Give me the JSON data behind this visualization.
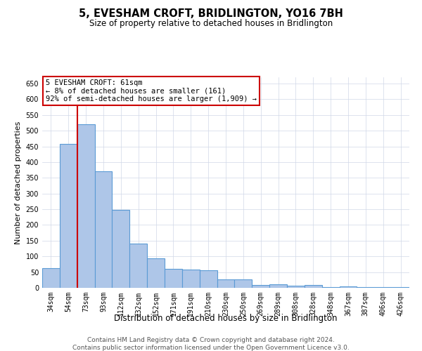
{
  "title": "5, EVESHAM CROFT, BRIDLINGTON, YO16 7BH",
  "subtitle": "Size of property relative to detached houses in Bridlington",
  "xlabel": "Distribution of detached houses by size in Bridlington",
  "ylabel": "Number of detached properties",
  "categories": [
    "34sqm",
    "54sqm",
    "73sqm",
    "93sqm",
    "112sqm",
    "132sqm",
    "152sqm",
    "171sqm",
    "191sqm",
    "210sqm",
    "230sqm",
    "250sqm",
    "269sqm",
    "289sqm",
    "308sqm",
    "328sqm",
    "348sqm",
    "367sqm",
    "387sqm",
    "406sqm",
    "426sqm"
  ],
  "values": [
    62,
    457,
    520,
    370,
    247,
    140,
    93,
    60,
    58,
    55,
    26,
    26,
    10,
    12,
    6,
    8,
    2,
    5,
    3,
    3,
    2
  ],
  "bar_color": "#aec6e8",
  "bar_edgecolor": "#5b9bd5",
  "bar_linewidth": 0.8,
  "vline_x": 1.5,
  "vline_color": "#cc0000",
  "vline_linewidth": 1.5,
  "annotation_box_text": "5 EVESHAM CROFT: 61sqm\n← 8% of detached houses are smaller (161)\n92% of semi-detached houses are larger (1,909) →",
  "annotation_box_edgecolor": "#cc0000",
  "annotation_fontsize": 7.5,
  "ylim": [
    0,
    670
  ],
  "yticks": [
    0,
    50,
    100,
    150,
    200,
    250,
    300,
    350,
    400,
    450,
    500,
    550,
    600,
    650
  ],
  "grid_color": "#d0d8e8",
  "background_color": "#ffffff",
  "footer_line1": "Contains HM Land Registry data © Crown copyright and database right 2024.",
  "footer_line2": "Contains public sector information licensed under the Open Government Licence v3.0.",
  "title_fontsize": 10.5,
  "subtitle_fontsize": 8.5,
  "xlabel_fontsize": 8.5,
  "ylabel_fontsize": 8,
  "tick_fontsize": 7,
  "footer_fontsize": 6.5
}
